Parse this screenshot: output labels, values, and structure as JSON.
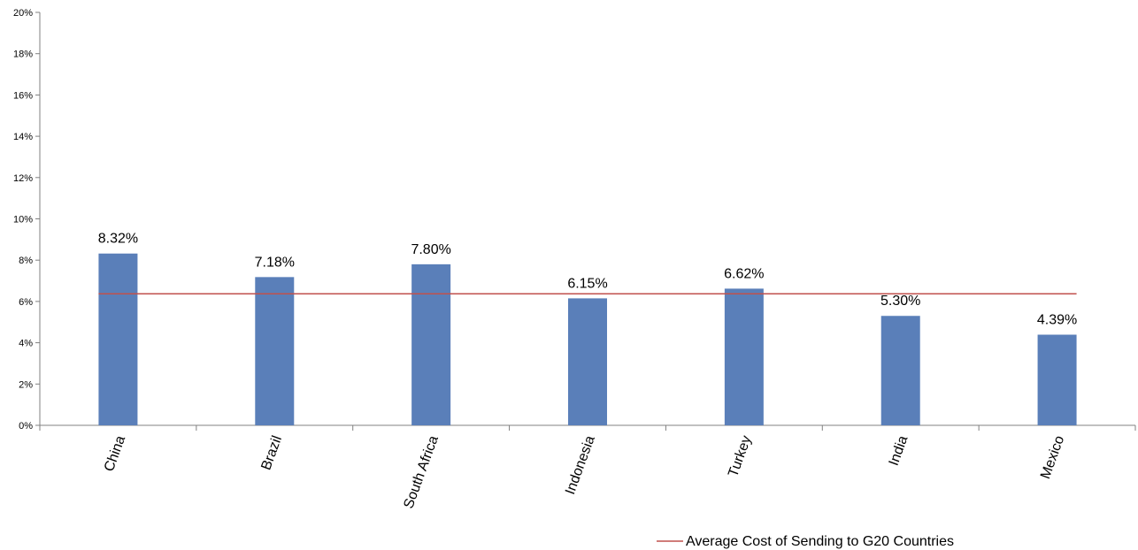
{
  "chart_data": {
    "type": "bar",
    "title": "",
    "categories": [
      "China",
      "Brazil",
      "South Africa",
      "Indonesia",
      "Turkey",
      "India",
      "Mexico"
    ],
    "values": [
      8.32,
      7.18,
      7.8,
      6.15,
      6.62,
      5.3,
      4.39
    ],
    "data_labels": [
      "8.32%",
      "7.18%",
      "7.80%",
      "6.15%",
      "6.62%",
      "5.30%",
      "4.39%"
    ],
    "ylim": [
      0,
      20
    ],
    "yticks": [
      0,
      2,
      4,
      6,
      8,
      10,
      12,
      14,
      16,
      18,
      20
    ],
    "ytick_labels": [
      "0%",
      "2%",
      "4%",
      "6%",
      "8%",
      "10%",
      "12%",
      "14%",
      "16%",
      "18%",
      "20%"
    ],
    "xlabel": "",
    "ylabel": "",
    "grid": false,
    "reference_line": {
      "name": "Average Cost of Sending to G20 Countries",
      "value": 6.37
    },
    "legend_position": "bottom-right",
    "colors": {
      "bar": "#5a7fb9",
      "line": "#c0504d",
      "title": "#1f6fc6",
      "axis": "#808080"
    }
  }
}
